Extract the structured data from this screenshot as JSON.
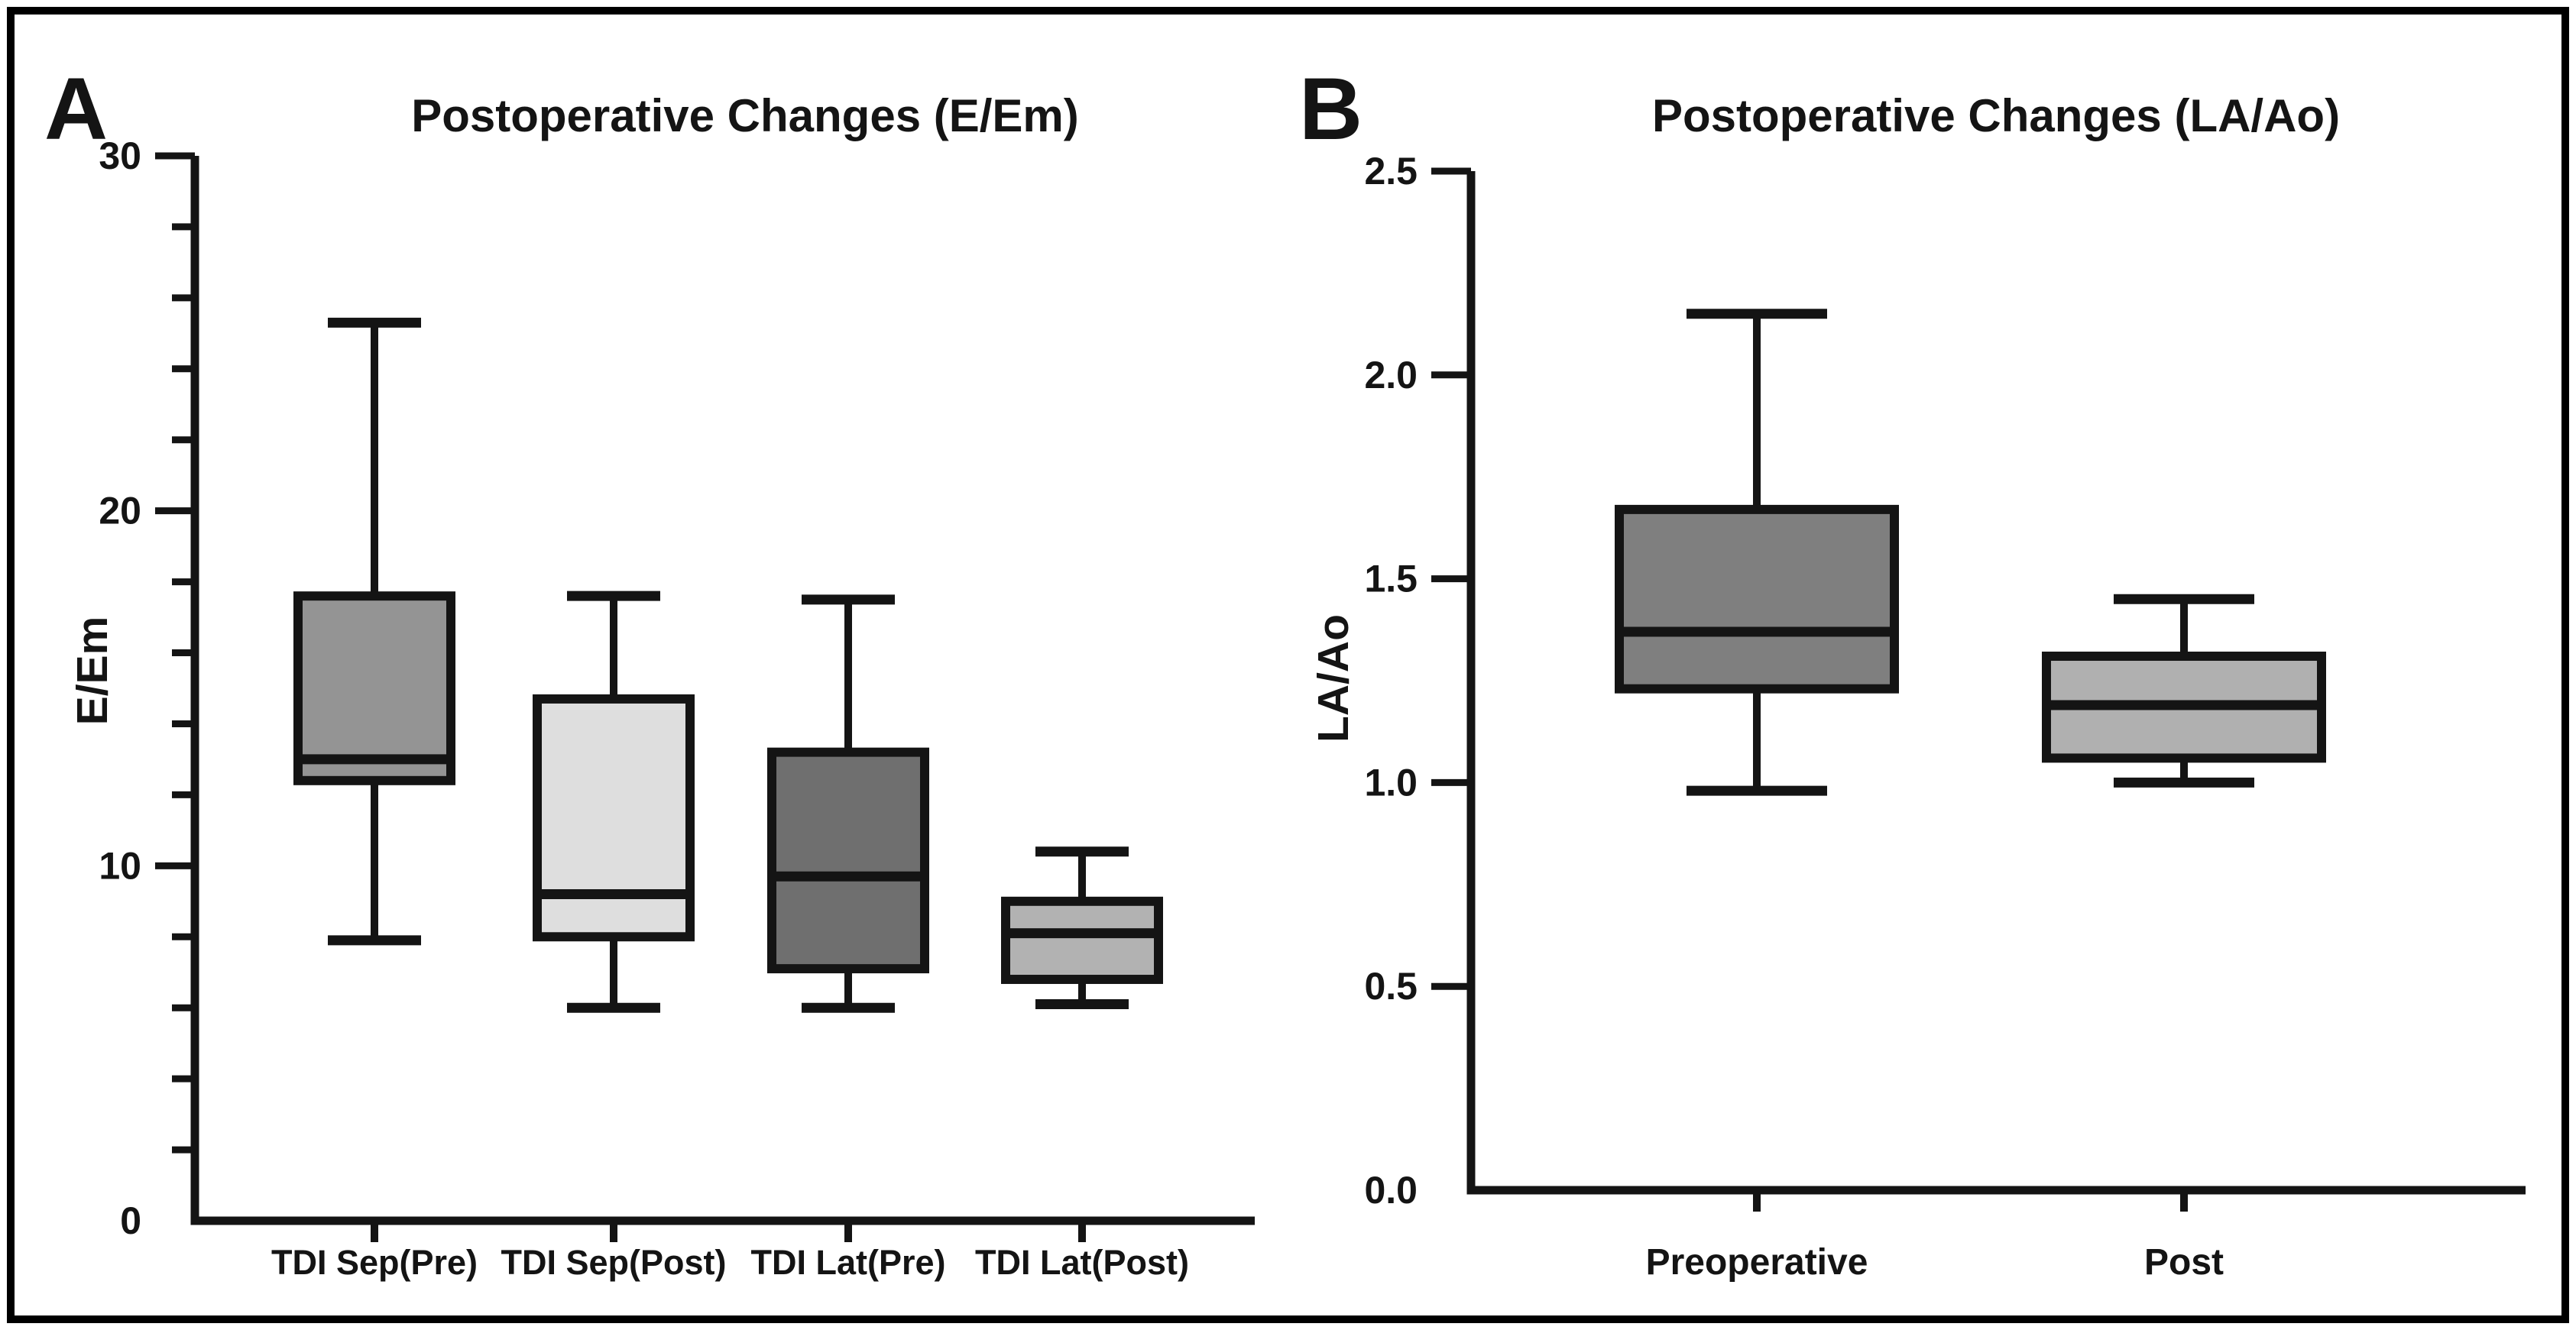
{
  "figure": {
    "background": "#ffffff",
    "border_color": "#000000",
    "line_color": "#141414",
    "panel_labels": [
      "A",
      "B"
    ]
  },
  "chart_data": [
    {
      "type": "box",
      "panel": "A",
      "title": "Postoperative Changes (E/Em)",
      "xlabel": "",
      "ylabel": "E/Em",
      "ylim": [
        0,
        30
      ],
      "yticks": [
        0,
        10,
        20,
        30
      ],
      "ytick_labels": [
        "0",
        "10",
        "20",
        "30"
      ],
      "minor_tick_step": 2,
      "grid": false,
      "legend": false,
      "categories": [
        "TDI Sep(Pre)",
        "TDI Sep(Post)",
        "TDI Lat(Pre)",
        "TDI Lat(Post)"
      ],
      "series": [
        {
          "category": "TDI Sep(Pre)",
          "whisker_low": 7.9,
          "q1": 12.4,
          "median": 13.0,
          "q3": 17.6,
          "whisker_high": 25.3,
          "fill": "#949494"
        },
        {
          "category": "TDI Sep(Post)",
          "whisker_low": 6.0,
          "q1": 8.0,
          "median": 9.2,
          "q3": 14.7,
          "whisker_high": 17.6,
          "fill": "#dedede"
        },
        {
          "category": "TDI Lat(Pre)",
          "whisker_low": 6.0,
          "q1": 7.1,
          "median": 9.7,
          "q3": 13.2,
          "whisker_high": 17.5,
          "fill": "#6f6f6f"
        },
        {
          "category": "TDI Lat(Post)",
          "whisker_low": 6.1,
          "q1": 6.8,
          "median": 8.1,
          "q3": 9.0,
          "whisker_high": 10.4,
          "fill": "#b2b2b2"
        }
      ]
    },
    {
      "type": "box",
      "panel": "B",
      "title": "Postoperative Changes (LA/Ao)",
      "xlabel": "",
      "ylabel": "LA/Ao",
      "ylim": [
        0,
        2.5
      ],
      "yticks": [
        0.0,
        0.5,
        1.0,
        1.5,
        2.0,
        2.5
      ],
      "ytick_labels": [
        "0.0",
        "0.5",
        "1.0",
        "1.5",
        "2.0",
        "2.5"
      ],
      "minor_tick_step": null,
      "grid": false,
      "legend": false,
      "categories": [
        "Preoperative",
        "Post"
      ],
      "series": [
        {
          "category": "Preoperative",
          "whisker_low": 0.98,
          "q1": 1.23,
          "median": 1.37,
          "q3": 1.67,
          "whisker_high": 2.15,
          "fill": "#7f7f7f"
        },
        {
          "category": "Post",
          "whisker_low": 1.0,
          "q1": 1.06,
          "median": 1.19,
          "q3": 1.31,
          "whisker_high": 1.45,
          "fill": "#b0b0b0"
        }
      ]
    }
  ]
}
